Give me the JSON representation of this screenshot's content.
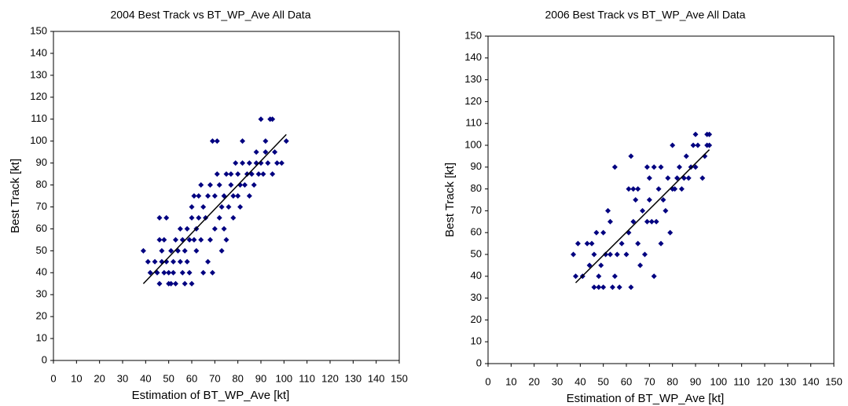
{
  "chart_data": [
    {
      "type": "scatter",
      "title": "2004 Best Track vs BT_WP_Ave All Data",
      "x_label": "Estimation of BT_WP_Ave [kt]",
      "y_label": "Best Track [kt]",
      "color": "#000080",
      "x": [
        39,
        41,
        42,
        44,
        45,
        46,
        46,
        46,
        47,
        47,
        48,
        48,
        49,
        49,
        50,
        50,
        51,
        51,
        52,
        52,
        53,
        53,
        54,
        55,
        55,
        56,
        56,
        57,
        57,
        58,
        58,
        59,
        59,
        60,
        60,
        60,
        61,
        61,
        62,
        62,
        63,
        63,
        64,
        64,
        65,
        65,
        66,
        67,
        67,
        68,
        68,
        69,
        69,
        70,
        70,
        71,
        71,
        72,
        72,
        73,
        73,
        74,
        74,
        75,
        75,
        76,
        77,
        77,
        78,
        78,
        79,
        80,
        80,
        81,
        81,
        82,
        82,
        83,
        84,
        85,
        85,
        86,
        87,
        88,
        88,
        89,
        90,
        90,
        91,
        92,
        92,
        93,
        94,
        95,
        95,
        96,
        97,
        99,
        101
      ],
      "values": [
        50,
        45,
        40,
        45,
        40,
        35,
        65,
        55,
        50,
        45,
        40,
        55,
        65,
        45,
        35,
        40,
        50,
        35,
        45,
        40,
        55,
        35,
        50,
        45,
        60,
        40,
        55,
        35,
        50,
        45,
        60,
        55,
        40,
        35,
        70,
        65,
        75,
        55,
        50,
        60,
        75,
        65,
        80,
        55,
        70,
        40,
        65,
        45,
        75,
        80,
        55,
        40,
        100,
        60,
        75,
        100,
        85,
        80,
        65,
        70,
        50,
        75,
        60,
        85,
        55,
        70,
        85,
        80,
        65,
        75,
        90,
        85,
        75,
        70,
        80,
        100,
        90,
        80,
        85,
        75,
        90,
        85,
        80,
        90,
        95,
        85,
        110,
        90,
        85,
        100,
        95,
        90,
        110,
        110,
        85,
        95,
        90,
        90,
        100
      ],
      "trend": {
        "x": [
          39,
          101
        ],
        "values": [
          35,
          103
        ]
      },
      "xlim": [
        0,
        150
      ],
      "ylim": [
        0,
        150
      ],
      "xticks": [
        0,
        10,
        20,
        30,
        40,
        50,
        60,
        70,
        80,
        90,
        100,
        110,
        120,
        130,
        140,
        150
      ],
      "yticks": [
        0,
        10,
        20,
        30,
        40,
        50,
        60,
        70,
        80,
        90,
        100,
        110,
        120,
        130,
        140,
        150
      ]
    },
    {
      "type": "scatter",
      "title": "2006 Best Track vs BT_WP_Ave All Data",
      "x_label": "Estimation of BT_WP_Ave [kt]",
      "y_label": "Best Track [kt]",
      "color": "#000080",
      "x": [
        37,
        38,
        39,
        41,
        43,
        44,
        45,
        46,
        46,
        47,
        48,
        48,
        49,
        50,
        50,
        51,
        52,
        53,
        53,
        54,
        55,
        55,
        56,
        57,
        58,
        60,
        61,
        61,
        62,
        62,
        63,
        63,
        64,
        65,
        65,
        66,
        67,
        68,
        69,
        69,
        70,
        70,
        71,
        72,
        72,
        73,
        74,
        75,
        75,
        76,
        77,
        78,
        79,
        80,
        80,
        81,
        82,
        83,
        84,
        85,
        86,
        87,
        88,
        89,
        90,
        90,
        91,
        93,
        94,
        95,
        95,
        96,
        96
      ],
      "values": [
        50,
        40,
        55,
        40,
        55,
        45,
        55,
        35,
        50,
        60,
        40,
        35,
        45,
        35,
        60,
        50,
        70,
        65,
        50,
        35,
        90,
        40,
        50,
        35,
        55,
        50,
        80,
        60,
        95,
        35,
        65,
        80,
        75,
        55,
        80,
        45,
        70,
        50,
        90,
        65,
        85,
        75,
        65,
        40,
        90,
        65,
        80,
        55,
        90,
        75,
        70,
        85,
        60,
        100,
        80,
        80,
        85,
        90,
        80,
        85,
        95,
        85,
        90,
        100,
        105,
        90,
        100,
        85,
        95,
        100,
        105,
        100,
        105
      ],
      "trend": {
        "x": [
          38,
          96
        ],
        "values": [
          37,
          98
        ]
      },
      "xlim": [
        0,
        150
      ],
      "ylim": [
        0,
        150
      ],
      "xticks": [
        0,
        10,
        20,
        30,
        40,
        50,
        60,
        70,
        80,
        90,
        100,
        110,
        120,
        130,
        140,
        150
      ],
      "yticks": [
        0,
        10,
        20,
        30,
        40,
        50,
        60,
        70,
        80,
        90,
        100,
        110,
        120,
        130,
        140,
        150
      ]
    }
  ]
}
